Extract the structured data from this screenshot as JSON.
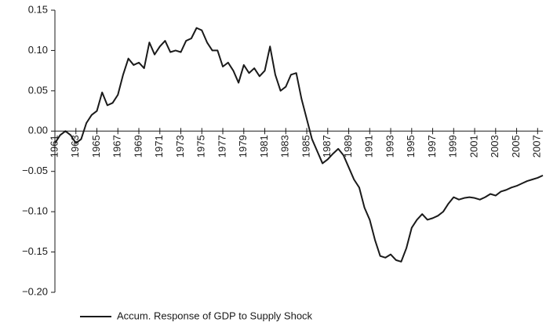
{
  "chart_data": {
    "type": "line",
    "x": [
      1961,
      1961.5,
      1962,
      1962.5,
      1963,
      1963.5,
      1964,
      1964.5,
      1965,
      1965.5,
      1966,
      1966.5,
      1967,
      1967.5,
      1968,
      1968.5,
      1969,
      1969.5,
      1970,
      1970.5,
      1971,
      1971.5,
      1972,
      1972.5,
      1973,
      1973.5,
      1974,
      1974.5,
      1975,
      1975.5,
      1976,
      1976.5,
      1977,
      1977.5,
      1978,
      1978.5,
      1979,
      1979.5,
      1980,
      1980.5,
      1981,
      1981.5,
      1982,
      1982.5,
      1983,
      1983.5,
      1984,
      1984.5,
      1985,
      1985.5,
      1986,
      1986.5,
      1987,
      1987.5,
      1988,
      1988.5,
      1989,
      1989.5,
      1990,
      1990.5,
      1991,
      1991.5,
      1992,
      1992.5,
      1993,
      1993.5,
      1994,
      1994.5,
      1995,
      1995.5,
      1996,
      1996.5,
      1997,
      1997.5,
      1998,
      1998.5,
      1999,
      1999.5,
      2000,
      2000.5,
      2001,
      2001.5,
      2002,
      2002.5,
      2003,
      2003.5,
      2004,
      2004.5,
      2005,
      2005.5,
      2006,
      2006.5,
      2007,
      2007.5
    ],
    "series": [
      {
        "name": "Accum. Response of GDP to Supply Shock",
        "color": "#1a1a1a",
        "values": [
          -0.015,
          -0.005,
          0.0,
          -0.005,
          -0.015,
          -0.01,
          0.01,
          0.02,
          0.025,
          0.048,
          0.032,
          0.035,
          0.045,
          0.07,
          0.09,
          0.082,
          0.085,
          0.078,
          0.11,
          0.095,
          0.105,
          0.112,
          0.098,
          0.1,
          0.098,
          0.112,
          0.115,
          0.128,
          0.125,
          0.11,
          0.1,
          0.1,
          0.08,
          0.085,
          0.075,
          0.06,
          0.082,
          0.072,
          0.078,
          0.068,
          0.075,
          0.105,
          0.07,
          0.05,
          0.055,
          0.07,
          0.072,
          0.04,
          0.015,
          -0.01,
          -0.025,
          -0.04,
          -0.035,
          -0.028,
          -0.022,
          -0.03,
          -0.045,
          -0.06,
          -0.07,
          -0.095,
          -0.11,
          -0.135,
          -0.155,
          -0.157,
          -0.153,
          -0.16,
          -0.162,
          -0.145,
          -0.12,
          -0.11,
          -0.103,
          -0.11,
          -0.108,
          -0.105,
          -0.1,
          -0.09,
          -0.082,
          -0.085,
          -0.083,
          -0.082,
          -0.083,
          -0.085,
          -0.082,
          -0.078,
          -0.08,
          -0.075,
          -0.073,
          -0.07,
          -0.068,
          -0.065,
          -0.062,
          -0.06,
          -0.058,
          -0.055
        ]
      }
    ],
    "xlim": [
      1961,
      2007.5
    ],
    "xticks": [
      1961,
      1963,
      1965,
      1967,
      1969,
      1971,
      1973,
      1975,
      1977,
      1979,
      1981,
      1983,
      1985,
      1987,
      1989,
      1991,
      1993,
      1995,
      1997,
      1999,
      2001,
      2003,
      2005,
      2007
    ],
    "ylim": [
      -0.2,
      0.15
    ],
    "yticks": [
      0.15,
      {
        "value": 0.1,
        "label": "0.10"
      },
      0.05,
      {
        "value": 0,
        "label": "0.00"
      },
      {
        "value": -0.05,
        "label": "−0.05"
      },
      {
        "value": -0.1,
        "label": "−0.10"
      },
      {
        "value": -0.15,
        "label": "−0.15"
      },
      {
        "value": -0.2,
        "label": "−0.20"
      }
    ],
    "legend": "bottom"
  }
}
